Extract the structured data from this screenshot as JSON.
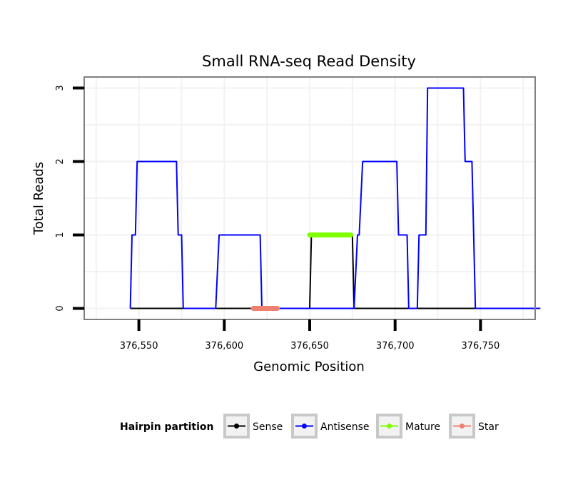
{
  "chart_data": {
    "type": "line",
    "title": "Small RNA-seq Read Density",
    "xlabel": "Genomic Position",
    "ylabel": "Total Reads",
    "xlim": [
      376518,
      376782
    ],
    "ylim": [
      -0.15,
      3.15
    ],
    "x_ticks": [
      376550,
      376600,
      376650,
      376700,
      376750
    ],
    "x_tick_labels": [
      "376,550",
      "376,600",
      "376,650",
      "376,700",
      "376,750"
    ],
    "y_ticks": [
      0,
      1,
      2,
      3
    ],
    "y_tick_labels": [
      "0",
      "1",
      "2",
      "3"
    ],
    "grid": true,
    "legend_position": "bottom",
    "legend": {
      "title": "Hairpin partition",
      "entries": [
        "Sense",
        "Antisense",
        "Mature",
        "Star"
      ]
    },
    "series": [
      {
        "name": "Sense",
        "color": "#000000",
        "x": [
          376545,
          376650,
          376651,
          376675,
          376676,
          376785
        ],
        "y": [
          0,
          0,
          1,
          1,
          0,
          0
        ]
      },
      {
        "name": "Antisense",
        "color": "#0000ff",
        "x": [
          376545,
          376546,
          376548,
          376549,
          376550,
          376572,
          376573,
          376575,
          376576,
          376595,
          376597,
          376621,
          376622,
          376676,
          376678,
          376679,
          376681,
          376701,
          376702,
          376707,
          376708,
          376713,
          376714,
          376718,
          376719,
          376740,
          376741,
          376745,
          376746,
          376747,
          376785
        ],
        "y": [
          0,
          1,
          1,
          2,
          2,
          2,
          1,
          1,
          0,
          0,
          1,
          1,
          0,
          0,
          1,
          1,
          2,
          2,
          1,
          1,
          0,
          0,
          1,
          1,
          3,
          3,
          2,
          2,
          1,
          0,
          0
        ]
      },
      {
        "name": "Mature",
        "color": "#7fff00",
        "x": [
          376650,
          376674
        ],
        "y": [
          1,
          1
        ]
      },
      {
        "name": "Star",
        "color": "#f08070",
        "x": [
          376617,
          376631
        ],
        "y": [
          0,
          0
        ]
      }
    ]
  }
}
